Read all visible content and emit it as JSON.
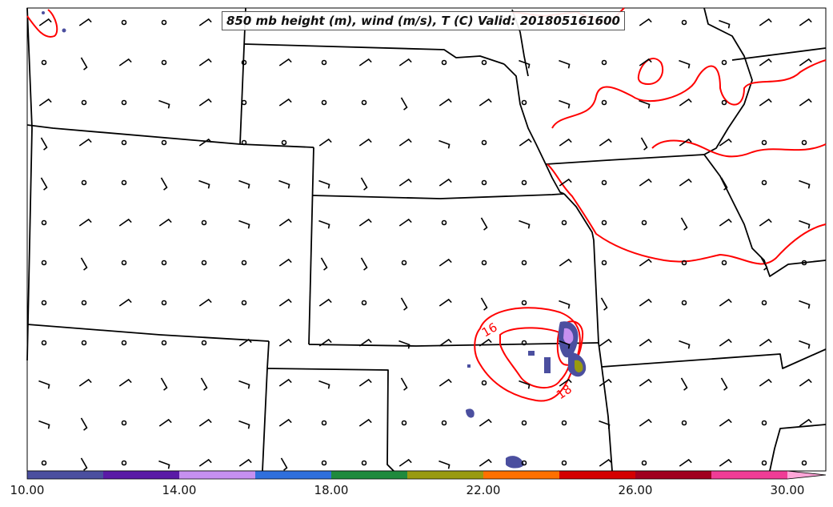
{
  "title": "850 mb height (m), wind (m/s), T (C) Valid: 201805161600",
  "colorbar": {
    "tick_labels": [
      "10.00",
      "14.00",
      "18.00",
      "22.00",
      "26.00",
      "30.00"
    ],
    "colors": [
      "#4b4f9f",
      "#5a1aa6",
      "#c690f0",
      "#2f6fdc",
      "#1f8a3d",
      "#999a10",
      "#ff7000",
      "#d40000",
      "#a0001f",
      "#f03c96",
      "#ffa6d8"
    ]
  },
  "contour_labels": [
    {
      "text": "16",
      "color": "#ff0000"
    },
    {
      "text": "18",
      "color": "#ff0000"
    }
  ],
  "colors": {
    "temperature_contour": "#ff0000",
    "state_border": "#000000",
    "wind_barb": "#000000"
  }
}
